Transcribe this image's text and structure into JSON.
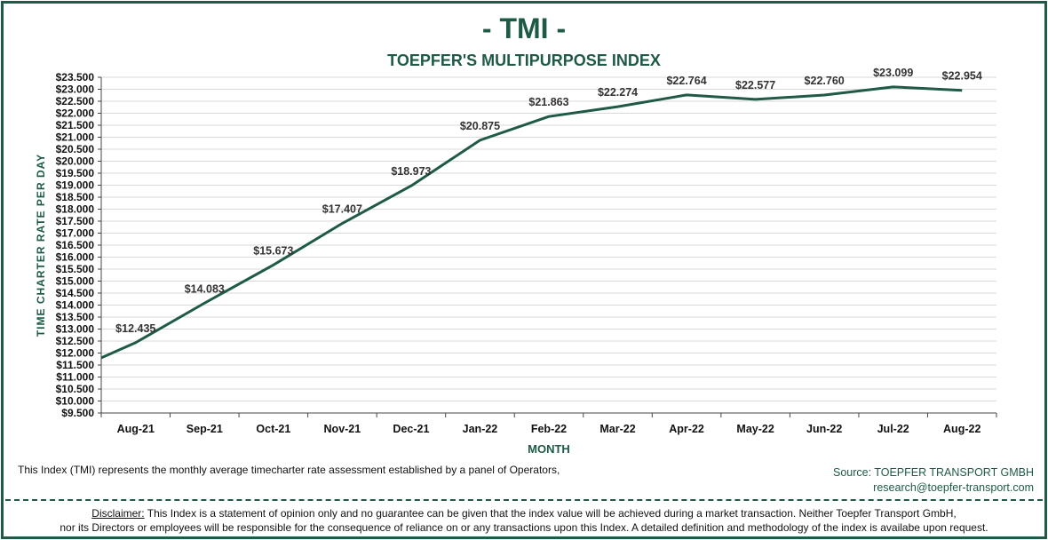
{
  "header": {
    "title": "- TMI -",
    "subtitle": "TOEPFER'S MULTIPURPOSE INDEX"
  },
  "chart_data": {
    "type": "line",
    "title": "- TMI -",
    "subtitle": "TOEPFER'S MULTIPURPOSE INDEX",
    "xlabel": "MONTH",
    "ylabel": "TIME CHARTER RATE PER DAY",
    "ylim": [
      9500,
      23500
    ],
    "ytick_step": 500,
    "grid": true,
    "categories": [
      "Aug-21",
      "Sep-21",
      "Oct-21",
      "Nov-21",
      "Dec-21",
      "Jan-22",
      "Feb-22",
      "Mar-22",
      "Apr-22",
      "May-22",
      "Jun-22",
      "Jul-22",
      "Aug-22"
    ],
    "series": [
      {
        "values": [
          12435,
          14083,
          15673,
          17407,
          18973,
          20875,
          21863,
          22274,
          22764,
          22577,
          22760,
          23099,
          22954
        ],
        "labels": [
          "$12.435",
          "$14.083",
          "$15.673",
          "$17.407",
          "$18.973",
          "$20.875",
          "$21.863",
          "$22.274",
          "$22.764",
          "$22.577",
          "$22.760",
          "$23.099",
          "$22.954"
        ]
      }
    ],
    "line_start_value": 11800,
    "line_color": "#1e5a46"
  },
  "footer": {
    "note": "This Index (TMI) represents the monthly  average timecharter rate assessment established by a panel of Operators,",
    "source_line1": "Source: TOEPFER TRANSPORT GMBH",
    "source_line2": "research@toepfer-transport.com",
    "disclaimer_label": "Disclaimer:",
    "disclaimer_line1": " This Index is a statement of opinion  only and no guarantee can be given that the index value will be achieved during a market transaction. Neither Toepfer Transport GmbH,",
    "disclaimer_line2": "nor its Directors or employees will be responsible for the consequence of reliance on or any transactions upon  this Index.  A detailed definition and methodology of the index is availabe upon request."
  }
}
